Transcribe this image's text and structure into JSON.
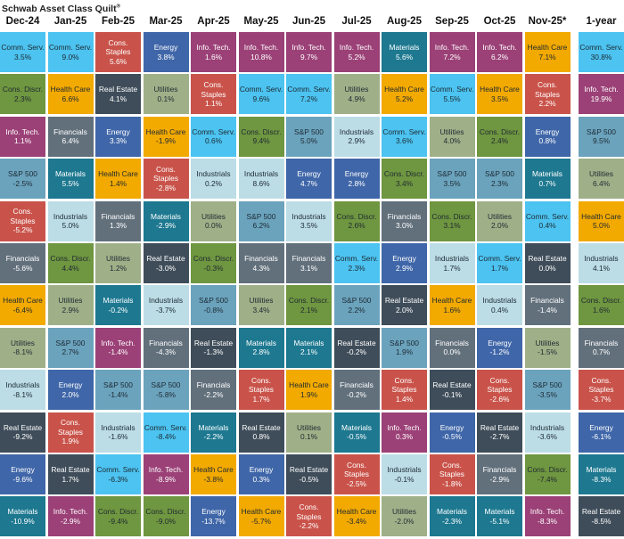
{
  "title": "Schwab Asset Class Quilt",
  "title_mark": "®",
  "sector_colors": {
    "Comm. Serv.": "#4cc3f0",
    "Cons. Discr.": "#6f9640",
    "Info. Tech.": "#9b4177",
    "S&P 500": "#6ba3bd",
    "Cons. Staples": "#c9534a",
    "Financials": "#62707c",
    "Health Care": "#f2a900",
    "Utilities": "#9fb088",
    "Industrials": "#bcdde6",
    "Real Estate": "#3f4d5a",
    "Energy": "#3f66a8",
    "Materials": "#1d7890"
  },
  "chart_data": {
    "type": "table",
    "title": "Schwab Asset Class Quilt",
    "columns": [
      {
        "label": "Dec-24",
        "cells": [
          [
            "Comm. Serv.",
            "3.5%"
          ],
          [
            "Cons. Discr.",
            "2.3%"
          ],
          [
            "Info. Tech.",
            "1.1%"
          ],
          [
            "S&P 500",
            "-2.5%"
          ],
          [
            "Cons. Staples",
            "-5.2%"
          ],
          [
            "Financials",
            "-5.6%"
          ],
          [
            "Health Care",
            "-6.4%"
          ],
          [
            "Utilities",
            "-8.1%"
          ],
          [
            "Industrials",
            "-8.1%"
          ],
          [
            "Real Estate",
            "-9.2%"
          ],
          [
            "Energy",
            "-9.6%"
          ],
          [
            "Materials",
            "-10.9%"
          ]
        ]
      },
      {
        "label": "Jan-25",
        "cells": [
          [
            "Comm. Serv.",
            "9.0%"
          ],
          [
            "Health Care",
            "6.6%"
          ],
          [
            "Financials",
            "6.4%"
          ],
          [
            "Materials",
            "5.5%"
          ],
          [
            "Industrials",
            "5.0%"
          ],
          [
            "Cons. Discr.",
            "4.4%"
          ],
          [
            "Utilities",
            "2.9%"
          ],
          [
            "S&P 500",
            "2.7%"
          ],
          [
            "Energy",
            "2.0%"
          ],
          [
            "Cons. Staples",
            "1.9%"
          ],
          [
            "Real Estate",
            "1.7%"
          ],
          [
            "Info. Tech.",
            "-2.9%"
          ]
        ]
      },
      {
        "label": "Feb-25",
        "cells": [
          [
            "Cons. Staples",
            "5.6%"
          ],
          [
            "Real Estate",
            "4.1%"
          ],
          [
            "Energy",
            "3.3%"
          ],
          [
            "Health Care",
            "1.4%"
          ],
          [
            "Financials",
            "1.3%"
          ],
          [
            "Utilities",
            "1.2%"
          ],
          [
            "Materials",
            "-0.2%"
          ],
          [
            "Info. Tech.",
            "-1.4%"
          ],
          [
            "S&P 500",
            "-1.4%"
          ],
          [
            "Industrials",
            "-1.6%"
          ],
          [
            "Comm. Serv.",
            "-6.3%"
          ],
          [
            "Cons. Discr.",
            "-9.4%"
          ]
        ]
      },
      {
        "label": "Mar-25",
        "cells": [
          [
            "Energy",
            "3.8%"
          ],
          [
            "Utilities",
            "0.1%"
          ],
          [
            "Health Care",
            "-1.9%"
          ],
          [
            "Cons. Staples",
            "-2.8%"
          ],
          [
            "Materials",
            "-2.9%"
          ],
          [
            "Real Estate",
            "-3.0%"
          ],
          [
            "Industrials",
            "-3.7%"
          ],
          [
            "Financials",
            "-4.3%"
          ],
          [
            "S&P 500",
            "-5.8%"
          ],
          [
            "Comm. Serv.",
            "-8.4%"
          ],
          [
            "Info. Tech.",
            "-8.9%"
          ],
          [
            "Cons. Discr.",
            "-9.0%"
          ]
        ]
      },
      {
        "label": "Apr-25",
        "cells": [
          [
            "Info. Tech.",
            "1.6%"
          ],
          [
            "Cons. Staples",
            "1.1%"
          ],
          [
            "Comm. Serv.",
            "0.6%"
          ],
          [
            "Industrials",
            "0.2%"
          ],
          [
            "Utilities",
            "0.0%"
          ],
          [
            "Cons. Discr.",
            "-0.3%"
          ],
          [
            "S&P 500",
            "-0.8%"
          ],
          [
            "Real Estate",
            "-1.3%"
          ],
          [
            "Financials",
            "-2.2%"
          ],
          [
            "Materials",
            "-2.2%"
          ],
          [
            "Health Care",
            "-3.8%"
          ],
          [
            "Energy",
            "-13.7%"
          ]
        ]
      },
      {
        "label": "May-25",
        "cells": [
          [
            "Info. Tech.",
            "10.8%"
          ],
          [
            "Comm. Serv.",
            "9.6%"
          ],
          [
            "Cons. Discr.",
            "9.4%"
          ],
          [
            "Industrials",
            "8.6%"
          ],
          [
            "S&P 500",
            "6.2%"
          ],
          [
            "Financials",
            "4.3%"
          ],
          [
            "Utilities",
            "3.4%"
          ],
          [
            "Materials",
            "2.8%"
          ],
          [
            "Cons. Staples",
            "1.7%"
          ],
          [
            "Real Estate",
            "0.8%"
          ],
          [
            "Energy",
            "0.3%"
          ],
          [
            "Health Care",
            "-5.7%"
          ]
        ]
      },
      {
        "label": "Jun-25",
        "cells": [
          [
            "Info. Tech.",
            "9.7%"
          ],
          [
            "Comm. Serv.",
            "7.2%"
          ],
          [
            "S&P 500",
            "5.0%"
          ],
          [
            "Energy",
            "4.7%"
          ],
          [
            "Industrials",
            "3.5%"
          ],
          [
            "Financials",
            "3.1%"
          ],
          [
            "Cons. Discr.",
            "2.1%"
          ],
          [
            "Materials",
            "2.1%"
          ],
          [
            "Health Care",
            "1.9%"
          ],
          [
            "Utilities",
            "0.1%"
          ],
          [
            "Real Estate",
            "-0.5%"
          ],
          [
            "Cons. Staples",
            "-2.2%"
          ]
        ]
      },
      {
        "label": "Jul-25",
        "cells": [
          [
            "Info. Tech.",
            "5.2%"
          ],
          [
            "Utilities",
            "4.9%"
          ],
          [
            "Industrials",
            "2.9%"
          ],
          [
            "Energy",
            "2.8%"
          ],
          [
            "Cons. Discr.",
            "2.6%"
          ],
          [
            "Comm. Serv.",
            "2.3%"
          ],
          [
            "S&P 500",
            "2.2%"
          ],
          [
            "Real Estate",
            "-0.2%"
          ],
          [
            "Financials",
            "-0.2%"
          ],
          [
            "Materials",
            "-0.5%"
          ],
          [
            "Cons. Staples",
            "-2.5%"
          ],
          [
            "Health Care",
            "-3.4%"
          ]
        ]
      },
      {
        "label": "Aug-25",
        "cells": [
          [
            "Materials",
            "5.6%"
          ],
          [
            "Health Care",
            "5.2%"
          ],
          [
            "Comm. Serv.",
            "3.6%"
          ],
          [
            "Cons. Discr.",
            "3.4%"
          ],
          [
            "Financials",
            "3.0%"
          ],
          [
            "Energy",
            "2.9%"
          ],
          [
            "Real Estate",
            "2.0%"
          ],
          [
            "S&P 500",
            "1.9%"
          ],
          [
            "Cons. Staples",
            "1.4%"
          ],
          [
            "Info. Tech.",
            "0.3%"
          ],
          [
            "Industrials",
            "-0.1%"
          ],
          [
            "Utilities",
            "-2.0%"
          ]
        ]
      },
      {
        "label": "Sep-25",
        "cells": [
          [
            "Info. Tech.",
            "7.2%"
          ],
          [
            "Comm. Serv.",
            "5.5%"
          ],
          [
            "Utilities",
            "4.0%"
          ],
          [
            "S&P 500",
            "3.5%"
          ],
          [
            "Cons. Discr.",
            "3.1%"
          ],
          [
            "Industrials",
            "1.7%"
          ],
          [
            "Health Care",
            "1.6%"
          ],
          [
            "Financials",
            "0.0%"
          ],
          [
            "Real Estate",
            "-0.1%"
          ],
          [
            "Energy",
            "-0.5%"
          ],
          [
            "Cons. Staples",
            "-1.8%"
          ],
          [
            "Materials",
            "-2.3%"
          ]
        ]
      },
      {
        "label": "Oct-25",
        "cells": [
          [
            "Info. Tech.",
            "6.2%"
          ],
          [
            "Health Care",
            "3.5%"
          ],
          [
            "Cons. Discr.",
            "2.4%"
          ],
          [
            "S&P 500",
            "2.3%"
          ],
          [
            "Utilities",
            "2.0%"
          ],
          [
            "Comm. Serv.",
            "1.7%"
          ],
          [
            "Industrials",
            "0.4%"
          ],
          [
            "Energy",
            "-1.2%"
          ],
          [
            "Cons. Staples",
            "-2.6%"
          ],
          [
            "Real Estate",
            "-2.7%"
          ],
          [
            "Financials",
            "-2.9%"
          ],
          [
            "Materials",
            "-5.1%"
          ]
        ]
      },
      {
        "label": "Nov-25*",
        "cells": [
          [
            "Health Care",
            "7.1%"
          ],
          [
            "Cons. Staples",
            "2.2%"
          ],
          [
            "Energy",
            "0.8%"
          ],
          [
            "Materials",
            "0.7%"
          ],
          [
            "Comm. Serv.",
            "0.4%"
          ],
          [
            "Real Estate",
            "0.0%"
          ],
          [
            "Financials",
            "-1.4%"
          ],
          [
            "Utilities",
            "-1.5%"
          ],
          [
            "S&P 500",
            "-3.5%"
          ],
          [
            "Industrials",
            "-3.6%"
          ],
          [
            "Cons. Discr.",
            "-7.4%"
          ],
          [
            "Info. Tech.",
            "-8.3%"
          ]
        ]
      },
      {
        "label": "1-year",
        "cells": [
          [
            "Comm. Serv.",
            "30.8%"
          ],
          [
            "Info. Tech.",
            "19.9%"
          ],
          [
            "S&P 500",
            "9.5%"
          ],
          [
            "Utilities",
            "6.4%"
          ],
          [
            "Health Care",
            "5.0%"
          ],
          [
            "Industrials",
            "4.1%"
          ],
          [
            "Cons. Discr.",
            "1.6%"
          ],
          [
            "Financials",
            "0.7%"
          ],
          [
            "Cons. Staples",
            "-3.7%"
          ],
          [
            "Energy",
            "-6.1%"
          ],
          [
            "Materials",
            "-8.3%"
          ],
          [
            "Real Estate",
            "-8.5%"
          ]
        ]
      }
    ]
  }
}
